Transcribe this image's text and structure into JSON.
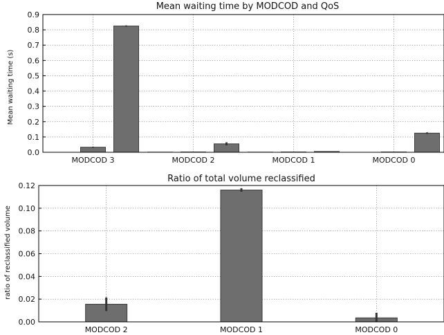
{
  "chart_data": [
    {
      "type": "bar",
      "title": "Mean waiting time by MODCOD and QoS",
      "xlabel": "",
      "ylabel": "Mean waiting time (s)",
      "ylim": [
        0,
        0.9
      ],
      "yticks": [
        "0.0",
        "0.1",
        "0.2",
        "0.3",
        "0.4",
        "0.5",
        "0.6",
        "0.7",
        "0.8",
        "0.9"
      ],
      "grid": true,
      "categories": [
        "MODCOD 3",
        "MODCOD 2",
        "MODCOD 1",
        "MODCOD 0"
      ],
      "series": [
        {
          "values": [
            0.0,
            0.001,
            0.001,
            0.0
          ],
          "errors": [
            0.0,
            0.001,
            0.001,
            0.0
          ]
        },
        {
          "values": [
            0.033,
            0.002,
            0.002,
            0.002
          ],
          "errors": [
            0.003,
            0.001,
            0.001,
            0.001
          ]
        },
        {
          "values": [
            0.825,
            0.055,
            0.005,
            0.125
          ],
          "errors": [
            0.004,
            0.01,
            0.001,
            0.005
          ]
        }
      ]
    },
    {
      "type": "bar",
      "title": "Ratio of total volume reclassified",
      "xlabel": "",
      "ylabel": "ratio of reclassified volume",
      "ylim": [
        0,
        0.12
      ],
      "yticks": [
        "0.00",
        "0.02",
        "0.04",
        "0.06",
        "0.08",
        "0.10",
        "0.12"
      ],
      "grid": true,
      "categories": [
        "MODCOD 2",
        "MODCOD 1",
        "MODCOD 0"
      ],
      "series": [
        {
          "values": [
            0.0155,
            0.116,
            0.0035
          ],
          "errors": [
            0.006,
            0.0015,
            0.0045
          ]
        }
      ]
    }
  ]
}
